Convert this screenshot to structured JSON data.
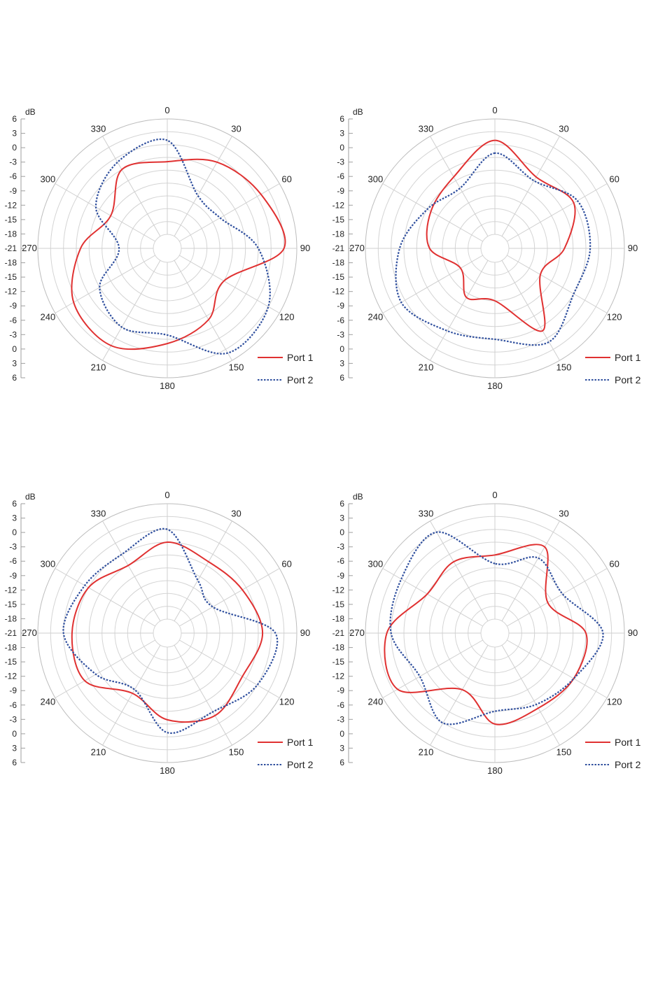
{
  "chart_data": [
    {
      "type": "polar-line",
      "unit_label": "dB",
      "radial_ticks": [
        "6",
        "3",
        "0",
        "-3",
        "-6",
        "-9",
        "-12",
        "-15",
        "-18",
        "-21",
        "-18",
        "-15",
        "-12",
        "-9",
        "-6",
        "-3",
        "0",
        "3",
        "6"
      ],
      "angle_labels": {
        "0": "0",
        "30": "330",
        "60": "300",
        "90": "270",
        "120": "240",
        "150": "210",
        "180": "180",
        "210": "150",
        "240": "120",
        "270": "90",
        "300": "60",
        "330": "30"
      },
      "rlim": [
        -21,
        6
      ],
      "angles": [
        0,
        30,
        60,
        90,
        120,
        150,
        180,
        210,
        240,
        270,
        300,
        330
      ],
      "series": [
        {
          "name": "Port 1",
          "color": "#e03131",
          "dash": "none",
          "values": [
            -4,
            -3,
            -9,
            -4,
            1,
            2,
            -2,
            -5,
            -9,
            3,
            1,
            -1
          ]
        },
        {
          "name": "Port 2",
          "color": "#2f4f9e",
          "dash": "dotted",
          "values": [
            1,
            -1,
            -5,
            -13,
            -6,
            -3,
            -4,
            4,
            3,
            -3,
            -10,
            -10
          ]
        }
      ]
    },
    {
      "type": "polar-line",
      "unit_label": "dB",
      "radial_ticks": [
        "6",
        "3",
        "0",
        "-3",
        "-6",
        "-9",
        "-12",
        "-15",
        "-18",
        "-21",
        "-18",
        "-15",
        "-12",
        "-9",
        "-6",
        "-3",
        "0",
        "3",
        "6"
      ],
      "angle_labels": {
        "0": "0",
        "30": "330",
        "60": "300",
        "90": "270",
        "120": "240",
        "150": "210",
        "180": "180",
        "210": "150",
        "240": "120",
        "270": "90",
        "300": "60",
        "330": "30"
      },
      "rlim": [
        -21,
        6
      ],
      "angles": [
        0,
        30,
        60,
        90,
        120,
        150,
        180,
        210,
        240,
        270,
        300,
        330
      ],
      "series": [
        {
          "name": "Port 1",
          "color": "#e03131",
          "dash": "none",
          "values": [
            1,
            -5,
            -7,
            -9,
            -15,
            -11,
            -12,
            -2,
            -12,
            -8,
            -3,
            -5
          ]
        },
        {
          "name": "Port 2",
          "color": "#2f4f9e",
          "dash": "dotted",
          "values": [
            -2,
            -8,
            -6,
            -2,
            1,
            -2,
            -3,
            1,
            -3,
            -2,
            -2,
            -6
          ]
        }
      ]
    },
    {
      "type": "polar-line",
      "unit_label": "dB",
      "radial_ticks": [
        "6",
        "3",
        "0",
        "-3",
        "-6",
        "-9",
        "-12",
        "-15",
        "-18",
        "-21",
        "-18",
        "-15",
        "-12",
        "-9",
        "-6",
        "-3",
        "0",
        "3",
        "6"
      ],
      "angle_labels": {
        "0": "0",
        "30": "330",
        "60": "300",
        "90": "270",
        "120": "240",
        "150": "210",
        "180": "180",
        "210": "150",
        "240": "120",
        "270": "90",
        "300": "60",
        "330": "30"
      },
      "rlim": [
        -21,
        6
      ],
      "angles": [
        0,
        30,
        60,
        90,
        120,
        150,
        180,
        210,
        240,
        270,
        300,
        330
      ],
      "series": [
        {
          "name": "Port 1",
          "color": "#e03131",
          "dash": "none",
          "values": [
            -3,
            -6,
            -3,
            -2,
            -2,
            -8,
            -4,
            -2,
            -4,
            -2,
            -4,
            -5
          ]
        },
        {
          "name": "Port 2",
          "color": "#2f4f9e",
          "dash": "dotted",
          "values": [
            0,
            -3,
            -2,
            0,
            -5,
            -9,
            -1,
            -3,
            0,
            1,
            -12,
            -10
          ]
        }
      ]
    },
    {
      "type": "polar-line",
      "unit_label": "dB",
      "radial_ticks": [
        "6",
        "3",
        "0",
        "-3",
        "-6",
        "-9",
        "-12",
        "-15",
        "-18",
        "-21",
        "-18",
        "-15",
        "-12",
        "-9",
        "-6",
        "-3",
        "0",
        "3",
        "6"
      ],
      "angle_labels": {
        "0": "0",
        "30": "330",
        "60": "300",
        "90": "270",
        "120": "240",
        "150": "210",
        "180": "180",
        "210": "150",
        "240": "120",
        "270": "90",
        "300": "60",
        "330": "30"
      },
      "rlim": [
        -21,
        6
      ],
      "angles": [
        0,
        30,
        60,
        90,
        120,
        150,
        180,
        210,
        240,
        270,
        300,
        330
      ],
      "series": [
        {
          "name": "Port 1",
          "color": "#e03131",
          "dash": "none",
          "values": [
            -6,
            -5,
            -6,
            1,
            2,
            -9,
            -3,
            -4,
            -3,
            -3,
            -10,
            -1
          ]
        },
        {
          "name": "Port 2",
          "color": "#2f4f9e",
          "dash": "dotted",
          "values": [
            -8,
            3,
            1,
            0,
            -4,
            0,
            -6,
            -5,
            -3,
            1,
            -6,
            -4
          ]
        }
      ]
    }
  ]
}
